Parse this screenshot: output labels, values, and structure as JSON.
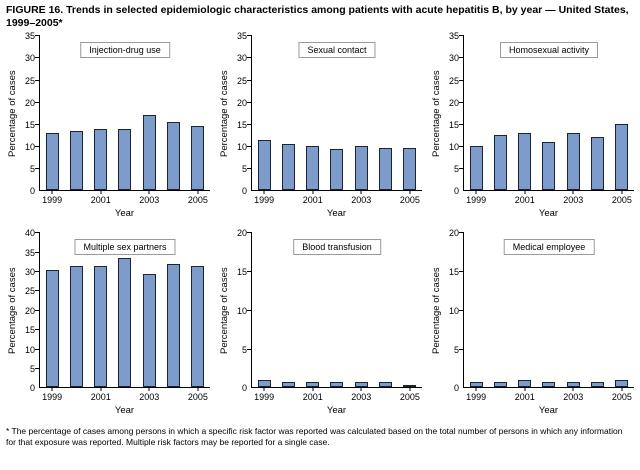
{
  "figure": {
    "title": "FIGURE 16. Trends in selected epidemiologic characteristics among patients with acute hepatitis B, by year — United States, 1999–2005*",
    "footnote": "* The percentage of cases among persons in which a specific risk factor was reported was calculated based on the total number of persons in which any information for that exposure was reported. Multiple risk factors may be reported for a single case."
  },
  "style": {
    "bar_fill": "#7e9ccb",
    "bar_border": "#1c2430"
  },
  "chart_data": [
    {
      "type": "bar",
      "title": "Injection-drug use",
      "xlabel": "Year",
      "ylabel": "Percentage of cases",
      "categories": [
        "1999",
        "2000",
        "2001",
        "2002",
        "2003",
        "2004",
        "2005"
      ],
      "xtick_labels": [
        "1999",
        "2001",
        "2003",
        "2005"
      ],
      "values": [
        13,
        13.5,
        14,
        14,
        17,
        15.5,
        14.5
      ],
      "ylim": [
        0,
        35
      ],
      "ytick_step": 5,
      "grid": false,
      "legend": "none"
    },
    {
      "type": "bar",
      "title": "Sexual contact",
      "xlabel": "Year",
      "ylabel": "Percentage of cases",
      "categories": [
        "1999",
        "2000",
        "2001",
        "2002",
        "2003",
        "2004",
        "2005"
      ],
      "xtick_labels": [
        "1999",
        "2001",
        "2003",
        "2005"
      ],
      "values": [
        11.5,
        10.5,
        10,
        9.3,
        10,
        9.5,
        9.5
      ],
      "ylim": [
        0,
        35
      ],
      "ytick_step": 5,
      "grid": false,
      "legend": "none"
    },
    {
      "type": "bar",
      "title": "Homosexual activity",
      "xlabel": "Year",
      "ylabel": "Percentage of cases",
      "categories": [
        "1999",
        "2000",
        "2001",
        "2002",
        "2003",
        "2004",
        "2005"
      ],
      "xtick_labels": [
        "1999",
        "2001",
        "2003",
        "2005"
      ],
      "values": [
        10,
        12.5,
        13,
        11,
        13,
        12,
        15
      ],
      "ylim": [
        0,
        35
      ],
      "ytick_step": 5,
      "grid": false,
      "legend": "none"
    },
    {
      "type": "bar",
      "title": "Multiple sex partners",
      "xlabel": "Year",
      "ylabel": "Percentage of cases",
      "categories": [
        "1999",
        "2000",
        "2001",
        "2002",
        "2003",
        "2004",
        "2005"
      ],
      "xtick_labels": [
        "1999",
        "2001",
        "2003",
        "2005"
      ],
      "values": [
        30.5,
        31.5,
        31.5,
        33.5,
        29.5,
        32,
        31.5
      ],
      "ylim": [
        0,
        40
      ],
      "ytick_step": 5,
      "grid": false,
      "legend": "none"
    },
    {
      "type": "bar",
      "title": "Blood transfusion",
      "xlabel": "Year",
      "ylabel": "Percentage of cases",
      "categories": [
        "1999",
        "2000",
        "2001",
        "2002",
        "2003",
        "2004",
        "2005"
      ],
      "xtick_labels": [
        "1999",
        "2001",
        "2003",
        "2005"
      ],
      "values": [
        1,
        0.7,
        0.7,
        0.7,
        0.7,
        0.7,
        0.3
      ],
      "ylim": [
        0,
        20
      ],
      "ytick_step": 5,
      "grid": false,
      "legend": "none"
    },
    {
      "type": "bar",
      "title": "Medical employee",
      "xlabel": "Year",
      "ylabel": "Percentage of cases",
      "categories": [
        "1999",
        "2000",
        "2001",
        "2002",
        "2003",
        "2004",
        "2005"
      ],
      "xtick_labels": [
        "1999",
        "2001",
        "2003",
        "2005"
      ],
      "values": [
        0.7,
        0.7,
        1,
        0.7,
        0.7,
        0.7,
        1
      ],
      "ylim": [
        0,
        20
      ],
      "ytick_step": 5,
      "grid": false,
      "legend": "none"
    }
  ]
}
